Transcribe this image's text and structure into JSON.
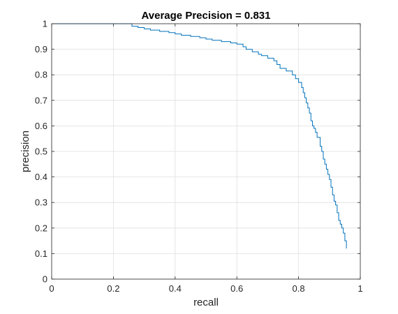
{
  "chart_data": {
    "type": "line",
    "title": "Average Precision = 0.831",
    "xlabel": "recall",
    "ylabel": "precision",
    "xlim": [
      0,
      1
    ],
    "ylim": [
      0,
      1
    ],
    "grid": true,
    "x_ticks": [
      "0",
      "0.2",
      "0.4",
      "0.6",
      "0.8",
      "1"
    ],
    "y_ticks": [
      "0",
      "0.1",
      "0.2",
      "0.3",
      "0.4",
      "0.5",
      "0.6",
      "0.7",
      "0.8",
      "0.9",
      "1"
    ],
    "line_color": "#0072BD",
    "series": [
      {
        "x": [
          0.0,
          0.05,
          0.1,
          0.15,
          0.2,
          0.25,
          0.26,
          0.28,
          0.3,
          0.32,
          0.35,
          0.38,
          0.4,
          0.42,
          0.45,
          0.48,
          0.5,
          0.52,
          0.55,
          0.58,
          0.6,
          0.62,
          0.63,
          0.65,
          0.67,
          0.68,
          0.7,
          0.72,
          0.73,
          0.74,
          0.76,
          0.78,
          0.79,
          0.8,
          0.81,
          0.815,
          0.82,
          0.825,
          0.83,
          0.835,
          0.84,
          0.845,
          0.85,
          0.855,
          0.86,
          0.87,
          0.875,
          0.88,
          0.885,
          0.89,
          0.895,
          0.9,
          0.905,
          0.91,
          0.915,
          0.92,
          0.925,
          0.93,
          0.935,
          0.94,
          0.945,
          0.95,
          0.955
        ],
        "y": [
          1.0,
          1.0,
          1.0,
          1.0,
          1.0,
          1.0,
          0.99,
          0.985,
          0.98,
          0.975,
          0.97,
          0.965,
          0.96,
          0.955,
          0.95,
          0.945,
          0.94,
          0.935,
          0.93,
          0.925,
          0.92,
          0.91,
          0.9,
          0.89,
          0.88,
          0.875,
          0.865,
          0.855,
          0.84,
          0.825,
          0.815,
          0.8,
          0.785,
          0.77,
          0.75,
          0.73,
          0.71,
          0.69,
          0.67,
          0.65,
          0.62,
          0.6,
          0.59,
          0.575,
          0.555,
          0.52,
          0.5,
          0.47,
          0.45,
          0.43,
          0.41,
          0.39,
          0.36,
          0.33,
          0.305,
          0.29,
          0.26,
          0.23,
          0.215,
          0.2,
          0.18,
          0.15,
          0.12
        ]
      }
    ]
  }
}
